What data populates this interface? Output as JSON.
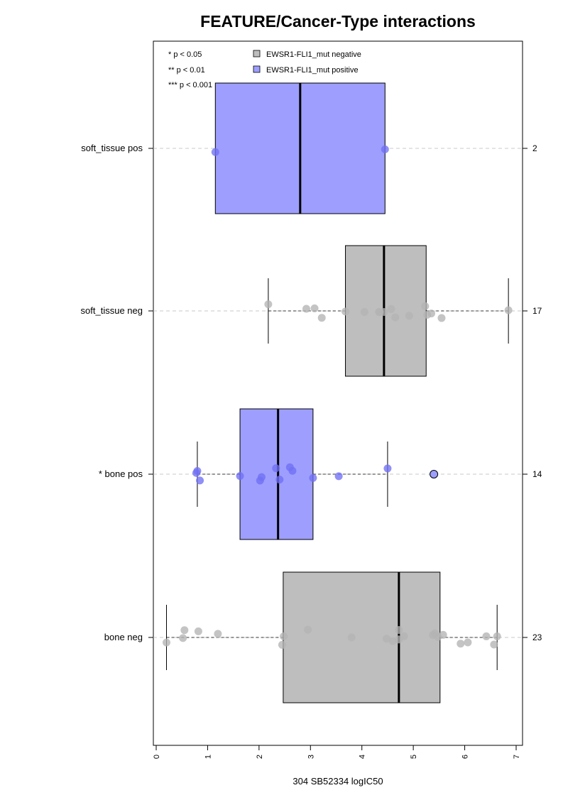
{
  "chart_data": {
    "type": "box",
    "title": "FEATURE/Cancer-Type interactions",
    "xlabel": "304 SB52334 logIC50",
    "ylabel": "",
    "xlim": [
      0,
      7
    ],
    "x_ticks": [
      0,
      1,
      2,
      3,
      4,
      5,
      6,
      7
    ],
    "orientation": "horizontal",
    "grid": "dashed horizontal line per group",
    "significance_legend": [
      "* p < 0.05",
      "** p < 0.01",
      "*** p < 0.001"
    ],
    "legend": {
      "position": "top",
      "entries": [
        {
          "name": "EWSR1-FLI1_mut negative",
          "color": "#bebebe"
        },
        {
          "name": "EWSR1-FLI1_mut positive",
          "color": "#9e9eff"
        }
      ]
    },
    "groups": [
      {
        "label": "soft_tissue pos",
        "count": "2",
        "status": "positive",
        "q1": 1.15,
        "median": 2.8,
        "q3": 4.45,
        "whisker_low": 1.15,
        "whisker_high": 4.45,
        "points": [
          1.15,
          4.45
        ],
        "outliers": []
      },
      {
        "label": "soft_tissue neg",
        "count": "17",
        "status": "negative",
        "q1": 3.68,
        "median": 4.43,
        "q3": 5.25,
        "whisker_low": 2.18,
        "whisker_high": 6.85,
        "points": [
          2.18,
          2.92,
          3.08,
          3.22,
          3.68,
          4.05,
          4.33,
          4.35,
          4.43,
          4.57,
          4.65,
          4.92,
          5.23,
          5.27,
          5.35,
          5.55,
          6.85
        ],
        "outliers": []
      },
      {
        "label": "* bone pos",
        "count": "14",
        "status": "positive",
        "q1": 1.63,
        "median": 2.37,
        "q3": 3.05,
        "whisker_low": 0.8,
        "whisker_high": 4.5,
        "points": [
          0.78,
          0.8,
          0.85,
          1.63,
          2.02,
          2.05,
          2.33,
          2.4,
          2.6,
          2.65,
          3.05,
          3.55,
          4.5
        ],
        "outliers": [
          5.4
        ]
      },
      {
        "label": "bone neg",
        "count": "23",
        "status": "negative",
        "q1": 2.47,
        "median": 4.72,
        "q3": 5.52,
        "whisker_low": 0.2,
        "whisker_high": 6.63,
        "points": [
          0.2,
          0.52,
          0.55,
          0.82,
          1.2,
          2.45,
          2.48,
          2.95,
          3.8,
          4.48,
          4.6,
          4.72,
          4.72,
          4.82,
          5.38,
          5.42,
          5.48,
          5.58,
          5.92,
          6.06,
          6.42,
          6.57,
          6.63
        ],
        "outliers": []
      }
    ]
  },
  "colors": {
    "negative_fill": "#bebebe",
    "negative_point": "#b3b3b3",
    "positive_fill": "#9e9eff",
    "positive_point": "#6f6ff5",
    "grid": "#c8c8c8"
  }
}
